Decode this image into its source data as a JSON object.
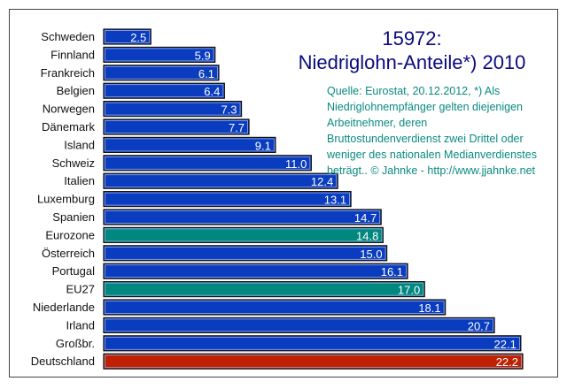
{
  "chart_data": {
    "type": "bar",
    "orientation": "horizontal",
    "title_id": "15972:",
    "title": "Niedriglohn-Anteile*) 2010",
    "source_note": "Quelle: Eurostat, 20.12.2012, *) Als\nNiedriglohnempfänger gelten diejenigen\nArbeitnehmer, deren\nBruttostundenverdienst zwei Drittel oder\nweniger des nationalen Medianverdienstes\nbeträgt.. © Jahnke - http://www.jjahnke.net",
    "xlabel": "",
    "ylabel": "",
    "xlim": [
      0,
      22.2
    ],
    "grid": false,
    "categories": [
      "Schweden",
      "Finnland",
      "Frankreich",
      "Belgien",
      "Norwegen",
      "Dänemark",
      "Island",
      "Schweiz",
      "Italien",
      "Luxemburg",
      "Spanien",
      "Eurozone",
      "Österreich",
      "Portugal",
      "EU27",
      "Niederlande",
      "Irland",
      "Großbr.",
      "Deutschland"
    ],
    "values": [
      2.5,
      5.9,
      6.1,
      6.4,
      7.3,
      7.7,
      9.1,
      11.0,
      12.4,
      13.1,
      14.7,
      14.8,
      15.0,
      16.1,
      17.0,
      18.1,
      20.7,
      22.1,
      22.2
    ],
    "value_labels": [
      "2.5",
      "5.9",
      "6.1",
      "6.4",
      "7.3",
      "7.7",
      "9.1",
      "11.0",
      "12.4",
      "13.1",
      "14.7",
      "14.8",
      "15.0",
      "16.1",
      "17.0",
      "18.1",
      "20.7",
      "22.1",
      "22.2"
    ],
    "highlight": {
      "Eurozone": "aggregate",
      "EU27": "aggregate",
      "Deutschland": "focus"
    }
  },
  "colors": {
    "default": "#0a3cc0",
    "aggregate": "#00877f",
    "focus": "#c02000",
    "title": "#0a0a80",
    "note": "#0a8a80"
  }
}
